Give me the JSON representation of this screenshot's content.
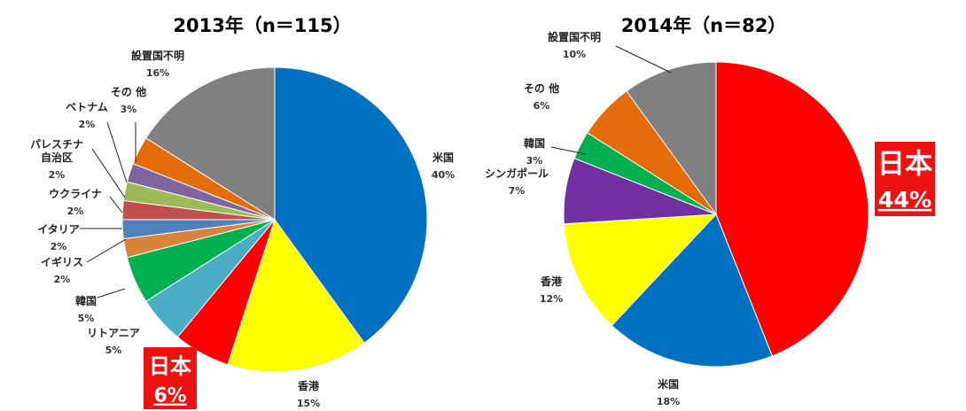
{
  "chart_data": [
    {
      "type": "pie",
      "title": "2013年（n＝115）",
      "slices": [
        {
          "label": "米国",
          "label_lines": [
            "米国"
          ],
          "pct_text": "40%",
          "value": 40,
          "color": "#0070c0"
        },
        {
          "label": "香港",
          "label_lines": [
            "香港"
          ],
          "pct_text": "15%",
          "value": 15,
          "color": "#ffff00"
        },
        {
          "label": "日本",
          "label_lines": [
            "日本"
          ],
          "pct_text": "6%",
          "value": 6,
          "color": "#ff0000",
          "highlight": true
        },
        {
          "label": "リトアニア",
          "label_lines": [
            "リトアニア"
          ],
          "pct_text": "5%",
          "value": 5,
          "color": "#4bacc6"
        },
        {
          "label": "韓国",
          "label_lines": [
            "韓国"
          ],
          "pct_text": "5%",
          "value": 5,
          "color": "#00b050"
        },
        {
          "label": "イギリス",
          "label_lines": [
            "イギリス"
          ],
          "pct_text": "2%",
          "value": 2,
          "color": "#d9843b"
        },
        {
          "label": "イタリア",
          "label_lines": [
            "イタリア"
          ],
          "pct_text": "2%",
          "value": 2,
          "color": "#4f81bd"
        },
        {
          "label": "ウクライナ",
          "label_lines": [
            "ウクライナ"
          ],
          "pct_text": "2%",
          "value": 2,
          "color": "#c0504d"
        },
        {
          "label": "パレスチナ自治区",
          "label_lines": [
            "パレスチナ",
            "自治区"
          ],
          "pct_text": "2%",
          "value": 2,
          "color": "#9bbb59"
        },
        {
          "label": "ベトナム",
          "label_lines": [
            "ベトナム"
          ],
          "pct_text": "2%",
          "value": 2,
          "color": "#8064a2"
        },
        {
          "label": "その 他",
          "label_lines": [
            "その 他"
          ],
          "pct_text": "3%",
          "value": 3,
          "color": "#e46c0a"
        },
        {
          "label": "設置国不明",
          "label_lines": [
            "設置国不明"
          ],
          "pct_text": "16%",
          "value": 16,
          "color": "#808080"
        }
      ]
    },
    {
      "type": "pie",
      "title": "2014年（n＝82）",
      "slices": [
        {
          "label": "日本",
          "label_lines": [
            "日本"
          ],
          "pct_text": "44%",
          "value": 44,
          "color": "#ff0000",
          "highlight": true
        },
        {
          "label": "米国",
          "label_lines": [
            "米国"
          ],
          "pct_text": "18%",
          "value": 18,
          "color": "#0070c0"
        },
        {
          "label": "香港",
          "label_lines": [
            "香港"
          ],
          "pct_text": "12%",
          "value": 12,
          "color": "#ffff00"
        },
        {
          "label": "シンガポール",
          "label_lines": [
            "シンガポール"
          ],
          "pct_text": "7%",
          "value": 7,
          "color": "#7030a0"
        },
        {
          "label": "韓国",
          "label_lines": [
            "韓国"
          ],
          "pct_text": "3%",
          "value": 3,
          "color": "#00b050"
        },
        {
          "label": "その 他",
          "label_lines": [
            "その 他"
          ],
          "pct_text": "6%",
          "value": 6,
          "color": "#e46c0a"
        },
        {
          "label": "設置国不明",
          "label_lines": [
            "設置国不明"
          ],
          "pct_text": "10%",
          "value": 10,
          "color": "#808080"
        }
      ]
    }
  ]
}
